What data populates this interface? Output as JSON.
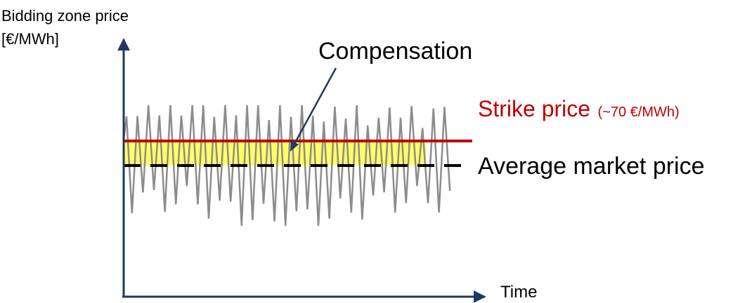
{
  "y_axis_label": {
    "line1": "Bidding zone price",
    "line2": "[€/MWh]"
  },
  "x_axis_label": "Time",
  "annotation": "Compensation",
  "strike": {
    "label": "Strike price",
    "value_note": "(~70 €/MWh)"
  },
  "average_label": "Average market price",
  "colors": {
    "axis": "#1f3864",
    "strike_line": "#c00000",
    "average_line": "#000000",
    "compensation_fill": "#ffff66",
    "price_series": "#8c8c8c"
  }
}
